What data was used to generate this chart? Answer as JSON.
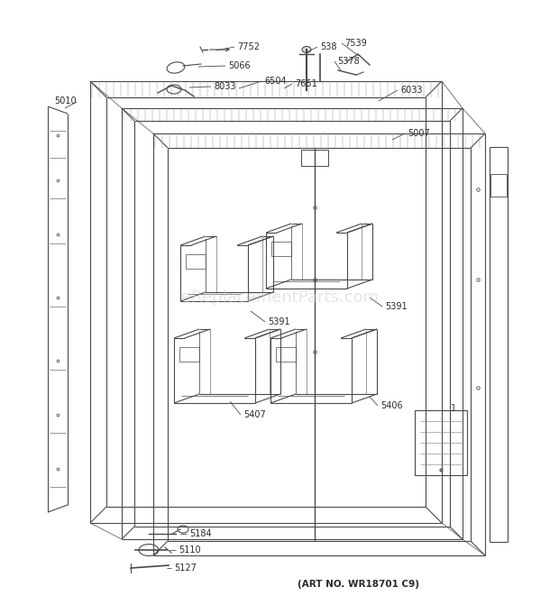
{
  "art_no": "(ART NO. WR18701 C9)",
  "background_color": "#ffffff",
  "watermark": "eReplacementParts.com",
  "line_color": "#4a4a4a",
  "text_color": "#2a2a2a",
  "font_size": 7.0
}
